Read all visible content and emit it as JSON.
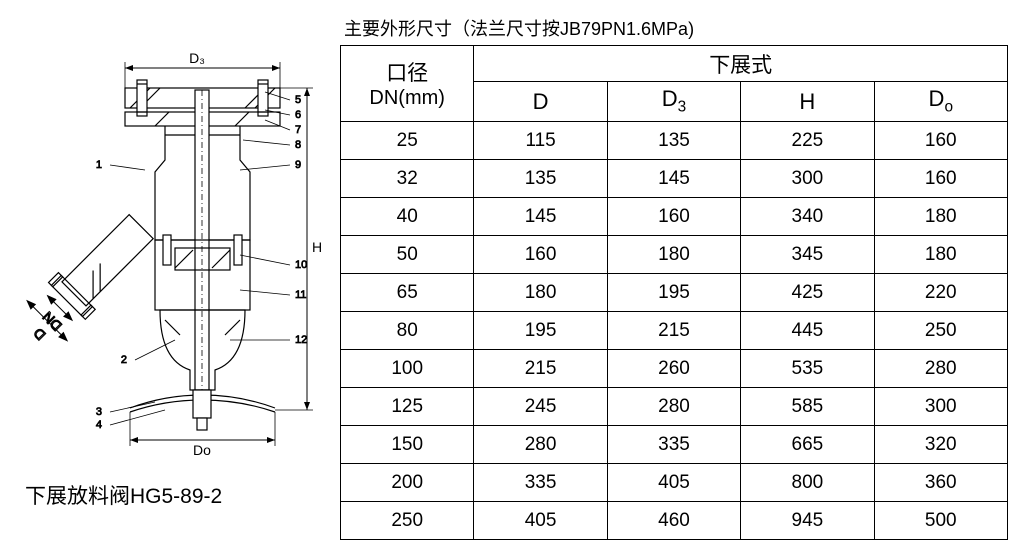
{
  "diagram": {
    "caption": "下展放料阀HG5-89-2",
    "dim_labels": {
      "top": "D₃",
      "bottom": "Do",
      "right": "H",
      "left": "DN"
    },
    "callouts_left": [
      "1",
      "2",
      "3",
      "4"
    ],
    "callouts_right": [
      "5",
      "6",
      "7",
      "8",
      "9",
      "10",
      "11",
      "12"
    ],
    "stroke": "#000000",
    "hatch": "#000000"
  },
  "table": {
    "title": "主要外形尺寸（法兰尺寸按JB79PN1.6MPa)",
    "header_group_left": "口径",
    "header_group_right": "下展式",
    "columns": [
      "DN(mm)",
      "D",
      "D₃",
      "H",
      "Dₒ"
    ],
    "rows": [
      [
        "25",
        "115",
        "135",
        "225",
        "160"
      ],
      [
        "32",
        "135",
        "145",
        "300",
        "160"
      ],
      [
        "40",
        "145",
        "160",
        "340",
        "180"
      ],
      [
        "50",
        "160",
        "180",
        "345",
        "180"
      ],
      [
        "65",
        "180",
        "195",
        "425",
        "220"
      ],
      [
        "80",
        "195",
        "215",
        "445",
        "250"
      ],
      [
        "100",
        "215",
        "260",
        "535",
        "280"
      ],
      [
        "125",
        "245",
        "280",
        "585",
        "300"
      ],
      [
        "150",
        "280",
        "335",
        "665",
        "320"
      ],
      [
        "200",
        "335",
        "405",
        "800",
        "360"
      ],
      [
        "250",
        "405",
        "460",
        "945",
        "500"
      ]
    ],
    "border_color": "#000000",
    "text_color": "#000000",
    "background": "#ffffff"
  }
}
